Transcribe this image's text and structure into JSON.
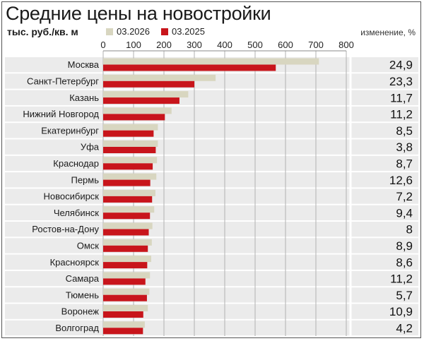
{
  "title": "Средние цены на новостройки",
  "unit_label": "тыс. руб./кв. м",
  "change_header": "изменение, %",
  "colors": {
    "series_2026": "#d8d6c0",
    "series_2025": "#c8151b",
    "row_band": "#ebebeb",
    "grid": "#b0b0b0"
  },
  "chart_data": {
    "type": "bar",
    "orientation": "horizontal",
    "title": "Средние цены на новостройки",
    "xlabel": "тыс. руб./кв. м",
    "xlim": [
      0,
      800
    ],
    "xticks": [
      "0",
      "100",
      "200",
      "300",
      "400",
      "500",
      "600",
      "700",
      "800"
    ],
    "tick_values": [
      0,
      100,
      200,
      300,
      400,
      500,
      600,
      700,
      800
    ],
    "grid": true,
    "legend_position": "top",
    "categories": [
      "Москва",
      "Санкт-Петербург",
      "Казань",
      "Нижний Новгород",
      "Екатеринбург",
      "Уфа",
      "Краснодар",
      "Пермь",
      "Новосибирск",
      "Челябинск",
      "Ростов-на-Дону",
      "Омск",
      "Красноярск",
      "Самара",
      "Тюмень",
      "Воронеж",
      "Волгоград"
    ],
    "series": [
      {
        "name": "03.2026",
        "values": [
          710,
          370,
          280,
          225,
          180,
          180,
          177,
          175,
          172,
          168,
          162,
          160,
          158,
          154,
          152,
          147,
          137
        ]
      },
      {
        "name": "03.2025",
        "values": [
          568,
          300,
          251,
          203,
          166,
          173,
          163,
          155,
          161,
          154,
          150,
          147,
          145,
          139,
          144,
          132,
          131
        ]
      }
    ],
    "change_pct": [
      "24,9",
      "23,3",
      "11,7",
      "11,2",
      "8,5",
      "3,8",
      "8,7",
      "12,6",
      "7,2",
      "9,4",
      "8",
      "8,9",
      "8,6",
      "11,2",
      "5,7",
      "10,9",
      "4,2"
    ]
  }
}
